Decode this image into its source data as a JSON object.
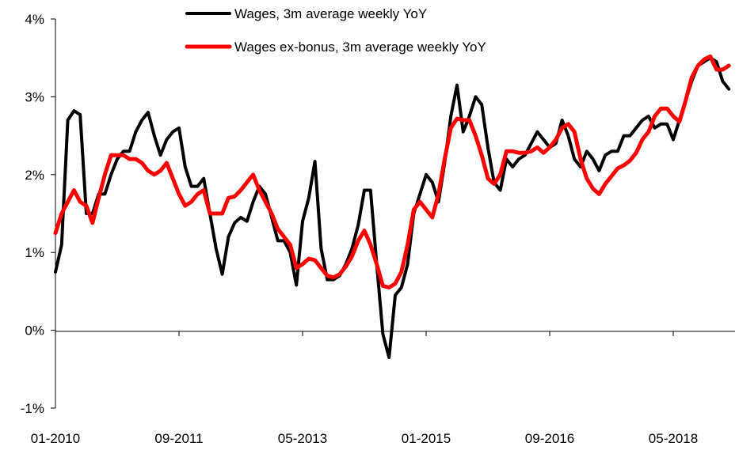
{
  "chart_data": {
    "type": "line",
    "title": "",
    "xlabel": "",
    "ylabel": "",
    "ylim": [
      -1,
      4
    ],
    "yticks": [
      -1,
      0,
      1,
      2,
      3,
      4
    ],
    "ytick_labels": [
      "-1%",
      "0%",
      "1%",
      "2%",
      "3%",
      "4%"
    ],
    "xlim": [
      "2010-01",
      "2019-03"
    ],
    "xticks": [
      "2010-01",
      "2011-09",
      "2013-05",
      "2015-01",
      "2016-09",
      "2018-05"
    ],
    "xtick_labels": [
      "01-2010",
      "09-2011",
      "05-2013",
      "01-2015",
      "09-2016",
      "05-2018"
    ],
    "grid": false,
    "legend_position": "top-center",
    "series": [
      {
        "name": "Wages, 3m average weekly YoY",
        "color": "#000000",
        "points": [
          [
            "2010-01",
            0.75
          ],
          [
            "2010-02",
            1.1
          ],
          [
            "2010-03",
            2.7
          ],
          [
            "2010-04",
            2.82
          ],
          [
            "2010-05",
            2.77
          ],
          [
            "2010-06",
            1.5
          ],
          [
            "2010-07",
            1.5
          ],
          [
            "2010-08",
            1.75
          ],
          [
            "2010-09",
            1.75
          ],
          [
            "2010-10",
            2.0
          ],
          [
            "2010-11",
            2.2
          ],
          [
            "2010-12",
            2.3
          ],
          [
            "2011-01",
            2.3
          ],
          [
            "2011-02",
            2.55
          ],
          [
            "2011-03",
            2.7
          ],
          [
            "2011-04",
            2.8
          ],
          [
            "2011-05",
            2.5
          ],
          [
            "2011-06",
            2.25
          ],
          [
            "2011-07",
            2.45
          ],
          [
            "2011-08",
            2.55
          ],
          [
            "2011-09",
            2.6
          ],
          [
            "2011-10",
            2.1
          ],
          [
            "2011-11",
            1.85
          ],
          [
            "2011-12",
            1.85
          ],
          [
            "2012-01",
            1.95
          ],
          [
            "2012-02",
            1.5
          ],
          [
            "2012-03",
            1.05
          ],
          [
            "2012-04",
            0.72
          ],
          [
            "2012-05",
            1.2
          ],
          [
            "2012-06",
            1.38
          ],
          [
            "2012-07",
            1.45
          ],
          [
            "2012-08",
            1.4
          ],
          [
            "2012-09",
            1.65
          ],
          [
            "2012-10",
            1.85
          ],
          [
            "2012-11",
            1.75
          ],
          [
            "2012-12",
            1.45
          ],
          [
            "2013-01",
            1.15
          ],
          [
            "2013-02",
            1.15
          ],
          [
            "2013-03",
            1.0
          ],
          [
            "2013-04",
            0.58
          ],
          [
            "2013-05",
            1.4
          ],
          [
            "2013-06",
            1.7
          ],
          [
            "2013-07",
            2.17
          ],
          [
            "2013-08",
            1.05
          ],
          [
            "2013-09",
            0.65
          ],
          [
            "2013-10",
            0.65
          ],
          [
            "2013-11",
            0.7
          ],
          [
            "2013-12",
            0.85
          ],
          [
            "2014-01",
            1.05
          ],
          [
            "2014-02",
            1.35
          ],
          [
            "2014-03",
            1.8
          ],
          [
            "2014-04",
            1.8
          ],
          [
            "2014-05",
            0.85
          ],
          [
            "2014-06",
            -0.05
          ],
          [
            "2014-07",
            -0.35
          ],
          [
            "2014-08",
            0.45
          ],
          [
            "2014-09",
            0.55
          ],
          [
            "2014-10",
            0.85
          ],
          [
            "2014-11",
            1.5
          ],
          [
            "2014-12",
            1.75
          ],
          [
            "2015-01",
            2.0
          ],
          [
            "2015-02",
            1.9
          ],
          [
            "2015-03",
            1.65
          ],
          [
            "2015-04",
            2.15
          ],
          [
            "2015-05",
            2.75
          ],
          [
            "2015-06",
            3.15
          ],
          [
            "2015-07",
            2.55
          ],
          [
            "2015-08",
            2.75
          ],
          [
            "2015-09",
            3.0
          ],
          [
            "2015-10",
            2.9
          ],
          [
            "2015-11",
            2.35
          ],
          [
            "2015-12",
            1.9
          ],
          [
            "2016-01",
            1.8
          ],
          [
            "2016-02",
            2.2
          ],
          [
            "2016-03",
            2.1
          ],
          [
            "2016-04",
            2.2
          ],
          [
            "2016-05",
            2.25
          ],
          [
            "2016-06",
            2.4
          ],
          [
            "2016-07",
            2.55
          ],
          [
            "2016-08",
            2.45
          ],
          [
            "2016-09",
            2.35
          ],
          [
            "2016-10",
            2.4
          ],
          [
            "2016-11",
            2.7
          ],
          [
            "2016-12",
            2.5
          ],
          [
            "2017-01",
            2.2
          ],
          [
            "2017-02",
            2.1
          ],
          [
            "2017-03",
            2.3
          ],
          [
            "2017-04",
            2.2
          ],
          [
            "2017-05",
            2.05
          ],
          [
            "2017-06",
            2.25
          ],
          [
            "2017-07",
            2.3
          ],
          [
            "2017-08",
            2.3
          ],
          [
            "2017-09",
            2.5
          ],
          [
            "2017-10",
            2.5
          ],
          [
            "2017-11",
            2.6
          ],
          [
            "2017-12",
            2.7
          ],
          [
            "2018-01",
            2.75
          ],
          [
            "2018-02",
            2.6
          ],
          [
            "2018-03",
            2.65
          ],
          [
            "2018-04",
            2.65
          ],
          [
            "2018-05",
            2.45
          ],
          [
            "2018-06",
            2.7
          ],
          [
            "2018-07",
            2.95
          ],
          [
            "2018-08",
            3.2
          ],
          [
            "2018-09",
            3.4
          ],
          [
            "2018-10",
            3.45
          ],
          [
            "2018-11",
            3.5
          ],
          [
            "2018-12",
            3.45
          ],
          [
            "2019-01",
            3.2
          ],
          [
            "2019-02",
            3.1
          ]
        ]
      },
      {
        "name": "Wages ex-bonus, 3m average weekly YoY",
        "color": "#ff0000",
        "points": [
          [
            "2010-01",
            1.25
          ],
          [
            "2010-02",
            1.5
          ],
          [
            "2010-03",
            1.65
          ],
          [
            "2010-04",
            1.8
          ],
          [
            "2010-05",
            1.65
          ],
          [
            "2010-06",
            1.6
          ],
          [
            "2010-07",
            1.38
          ],
          [
            "2010-08",
            1.7
          ],
          [
            "2010-09",
            2.0
          ],
          [
            "2010-10",
            2.25
          ],
          [
            "2010-11",
            2.25
          ],
          [
            "2010-12",
            2.25
          ],
          [
            "2011-01",
            2.2
          ],
          [
            "2011-02",
            2.2
          ],
          [
            "2011-03",
            2.15
          ],
          [
            "2011-04",
            2.05
          ],
          [
            "2011-05",
            2.0
          ],
          [
            "2011-06",
            2.05
          ],
          [
            "2011-07",
            2.15
          ],
          [
            "2011-08",
            1.95
          ],
          [
            "2011-09",
            1.75
          ],
          [
            "2011-10",
            1.6
          ],
          [
            "2011-11",
            1.65
          ],
          [
            "2011-12",
            1.75
          ],
          [
            "2012-01",
            1.8
          ],
          [
            "2012-02",
            1.5
          ],
          [
            "2012-03",
            1.5
          ],
          [
            "2012-04",
            1.5
          ],
          [
            "2012-05",
            1.7
          ],
          [
            "2012-06",
            1.72
          ],
          [
            "2012-07",
            1.8
          ],
          [
            "2012-08",
            1.9
          ],
          [
            "2012-09",
            2.0
          ],
          [
            "2012-10",
            1.8
          ],
          [
            "2012-11",
            1.65
          ],
          [
            "2012-12",
            1.5
          ],
          [
            "2013-01",
            1.3
          ],
          [
            "2013-02",
            1.2
          ],
          [
            "2013-03",
            1.1
          ],
          [
            "2013-04",
            0.8
          ],
          [
            "2013-05",
            0.85
          ],
          [
            "2013-06",
            0.92
          ],
          [
            "2013-07",
            0.9
          ],
          [
            "2013-08",
            0.8
          ],
          [
            "2013-09",
            0.7
          ],
          [
            "2013-10",
            0.68
          ],
          [
            "2013-11",
            0.72
          ],
          [
            "2013-12",
            0.82
          ],
          [
            "2014-01",
            0.95
          ],
          [
            "2014-02",
            1.15
          ],
          [
            "2014-03",
            1.28
          ],
          [
            "2014-04",
            1.1
          ],
          [
            "2014-05",
            0.85
          ],
          [
            "2014-06",
            0.57
          ],
          [
            "2014-07",
            0.55
          ],
          [
            "2014-08",
            0.6
          ],
          [
            "2014-09",
            0.75
          ],
          [
            "2014-10",
            1.1
          ],
          [
            "2014-11",
            1.55
          ],
          [
            "2014-12",
            1.65
          ],
          [
            "2015-01",
            1.55
          ],
          [
            "2015-02",
            1.45
          ],
          [
            "2015-03",
            1.75
          ],
          [
            "2015-04",
            2.2
          ],
          [
            "2015-05",
            2.6
          ],
          [
            "2015-06",
            2.72
          ],
          [
            "2015-07",
            2.7
          ],
          [
            "2015-08",
            2.7
          ],
          [
            "2015-09",
            2.5
          ],
          [
            "2015-10",
            2.25
          ],
          [
            "2015-11",
            1.95
          ],
          [
            "2015-12",
            1.88
          ],
          [
            "2016-01",
            2.0
          ],
          [
            "2016-02",
            2.3
          ],
          [
            "2016-03",
            2.3
          ],
          [
            "2016-04",
            2.28
          ],
          [
            "2016-05",
            2.28
          ],
          [
            "2016-06",
            2.3
          ],
          [
            "2016-07",
            2.35
          ],
          [
            "2016-08",
            2.28
          ],
          [
            "2016-09",
            2.35
          ],
          [
            "2016-10",
            2.45
          ],
          [
            "2016-11",
            2.6
          ],
          [
            "2016-12",
            2.65
          ],
          [
            "2017-01",
            2.55
          ],
          [
            "2017-02",
            2.2
          ],
          [
            "2017-03",
            1.95
          ],
          [
            "2017-04",
            1.82
          ],
          [
            "2017-05",
            1.75
          ],
          [
            "2017-06",
            1.88
          ],
          [
            "2017-07",
            1.98
          ],
          [
            "2017-08",
            2.08
          ],
          [
            "2017-09",
            2.12
          ],
          [
            "2017-10",
            2.18
          ],
          [
            "2017-11",
            2.28
          ],
          [
            "2017-12",
            2.45
          ],
          [
            "2018-01",
            2.55
          ],
          [
            "2018-02",
            2.75
          ],
          [
            "2018-03",
            2.85
          ],
          [
            "2018-04",
            2.85
          ],
          [
            "2018-05",
            2.75
          ],
          [
            "2018-06",
            2.68
          ],
          [
            "2018-07",
            2.95
          ],
          [
            "2018-08",
            3.25
          ],
          [
            "2018-09",
            3.4
          ],
          [
            "2018-10",
            3.48
          ],
          [
            "2018-11",
            3.52
          ],
          [
            "2018-12",
            3.35
          ],
          [
            "2019-01",
            3.35
          ],
          [
            "2019-02",
            3.4
          ]
        ]
      }
    ]
  }
}
